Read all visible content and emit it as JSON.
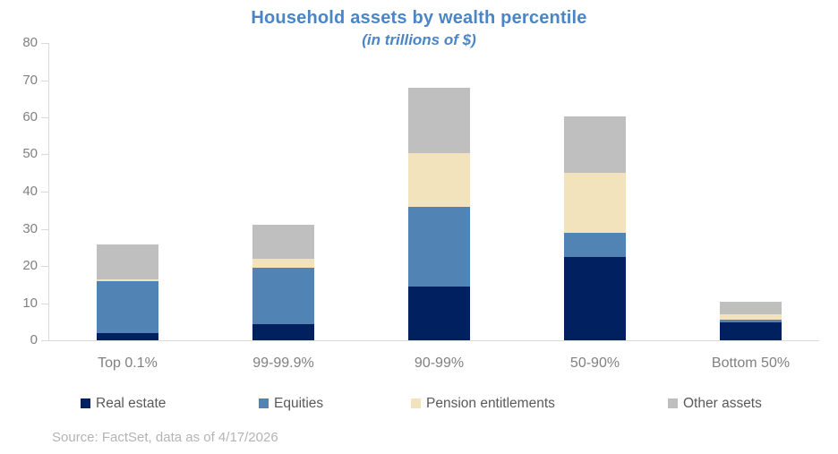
{
  "header": {
    "title": "Household assets by wealth percentile",
    "subtitle": "(in trillions of $)"
  },
  "source": {
    "text": "Source: FactSet, data as of 4/17/2026"
  },
  "colors": {
    "title_text": "#4c85c6",
    "axis_line": "#d9d9d9",
    "tick_label_text": "#808080",
    "category_label_text": "#808080",
    "legend_text": "#595959",
    "source_text": "#b4b4b4"
  },
  "chart_data": {
    "type": "bar",
    "stacked": true,
    "title": "Household assets by wealth percentile",
    "subtitle": "(in trillions of $)",
    "categories": [
      "Top 0.1%",
      "99-99.9%",
      "90-99%",
      "50-90%",
      "Bottom 50%"
    ],
    "series": [
      {
        "name": "Real estate",
        "color": "#002060",
        "values": [
          2.0,
          4.4,
          14.5,
          22.5,
          4.7
        ]
      },
      {
        "name": "Equities",
        "color": "#5184b4",
        "values": [
          14.0,
          15.0,
          21.5,
          6.4,
          0.8
        ]
      },
      {
        "name": "Pension entitlements",
        "color": "#f2e3bc",
        "values": [
          0.5,
          2.6,
          14.3,
          16.1,
          1.4
        ]
      },
      {
        "name": "Other assets",
        "color": "#bfbfbf",
        "values": [
          9.2,
          9.2,
          17.7,
          15.2,
          3.5
        ]
      }
    ],
    "totals": [
      25.7,
      31.2,
      68.0,
      60.2,
      10.4
    ],
    "xlabel": "",
    "ylabel": "",
    "ylim": [
      0,
      80
    ],
    "yticks": [
      0,
      10,
      20,
      30,
      40,
      50,
      60,
      70,
      80
    ],
    "grid": false,
    "legend_position": "bottom"
  }
}
